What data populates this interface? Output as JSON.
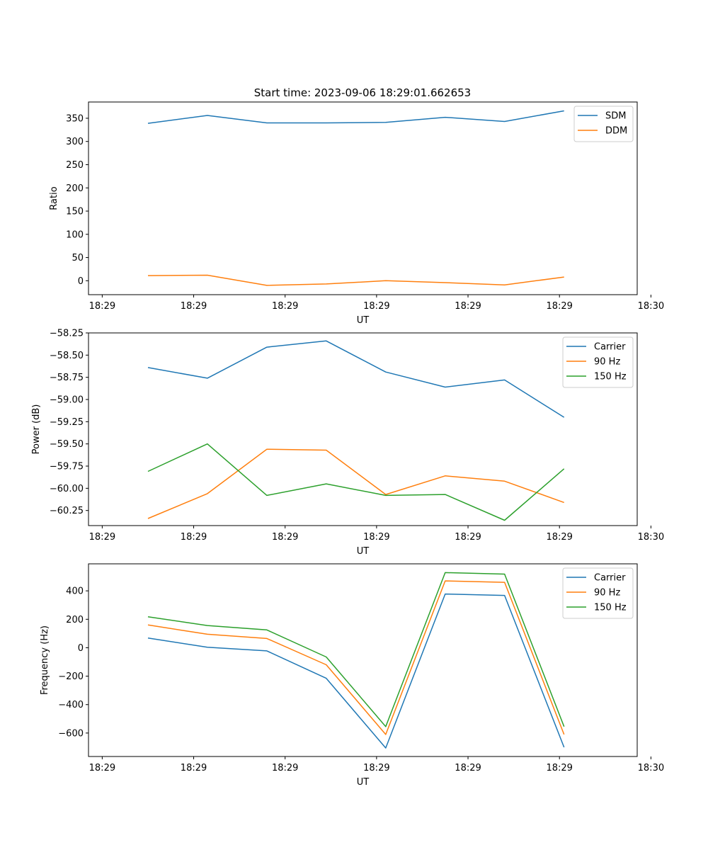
{
  "title": "Start time: 2023-09-06 18:29:01.662653",
  "colors": {
    "blue": "#1f77b4",
    "orange": "#ff7f0e",
    "green": "#2ca02c"
  },
  "chart_data": [
    {
      "type": "line",
      "title": "Start time: 2023-09-06 18:29:01.662653",
      "xlabel": "UT",
      "ylabel": "Ratio",
      "xlim": [
        -0.15,
        5.85
      ],
      "ylim": [
        -30,
        385
      ],
      "xticks": [
        0,
        1,
        2,
        3,
        4,
        5,
        6
      ],
      "xtick_labels": [
        "18:29",
        "18:29",
        "18:29",
        "18:29",
        "18:29",
        "18:29",
        "18:30"
      ],
      "yticks": [
        0,
        50,
        100,
        150,
        200,
        250,
        300,
        350
      ],
      "ytick_labels": [
        "0",
        "50",
        "100",
        "150",
        "200",
        "250",
        "300",
        "350"
      ],
      "x": [
        0.5,
        1.15,
        1.8,
        2.45,
        3.1,
        3.75,
        4.4,
        5.05
      ],
      "legend_position": "top-right",
      "series": [
        {
          "name": "SDM",
          "color": "#1f77b4",
          "values": [
            339,
            356,
            340,
            340,
            341,
            352,
            343,
            366
          ]
        },
        {
          "name": "DDM",
          "color": "#ff7f0e",
          "values": [
            11,
            12,
            -10,
            -7,
            0,
            -4,
            -9,
            8
          ]
        }
      ]
    },
    {
      "type": "line",
      "title": "",
      "xlabel": "UT",
      "ylabel": "Power (dB)",
      "xlim": [
        -0.15,
        5.85
      ],
      "ylim": [
        -60.42,
        -58.25
      ],
      "xticks": [
        0,
        1,
        2,
        3,
        4,
        5,
        6
      ],
      "xtick_labels": [
        "18:29",
        "18:29",
        "18:29",
        "18:29",
        "18:29",
        "18:29",
        "18:30"
      ],
      "yticks": [
        -60.25,
        -60.0,
        -59.75,
        -59.5,
        -59.25,
        -59.0,
        -58.75,
        -58.5,
        -58.25
      ],
      "ytick_labels": [
        "−60.25",
        "−60.00",
        "−59.75",
        "−59.50",
        "−59.25",
        "−59.00",
        "−58.75",
        "−58.50",
        "−58.25"
      ],
      "x": [
        0.5,
        1.15,
        1.8,
        2.45,
        3.1,
        3.75,
        4.4,
        5.05
      ],
      "legend_position": "top-right",
      "series": [
        {
          "name": "Carrier",
          "color": "#1f77b4",
          "values": [
            -58.64,
            -58.76,
            -58.41,
            -58.34,
            -58.69,
            -58.86,
            -58.78,
            -59.2
          ]
        },
        {
          "name": "90 Hz",
          "color": "#ff7f0e",
          "values": [
            -60.34,
            -60.06,
            -59.56,
            -59.57,
            -60.07,
            -59.86,
            -59.92,
            -60.16
          ]
        },
        {
          "name": "150 Hz",
          "color": "#2ca02c",
          "values": [
            -59.81,
            -59.5,
            -60.08,
            -59.95,
            -60.08,
            -60.07,
            -60.36,
            -59.78
          ]
        }
      ]
    },
    {
      "type": "line",
      "title": "",
      "xlabel": "UT",
      "ylabel": "Frequency (Hz)",
      "xlim": [
        -0.15,
        5.85
      ],
      "ylim": [
        -765,
        590
      ],
      "xticks": [
        0,
        1,
        2,
        3,
        4,
        5,
        6
      ],
      "xtick_labels": [
        "18:29",
        "18:29",
        "18:29",
        "18:29",
        "18:29",
        "18:29",
        "18:30"
      ],
      "yticks": [
        -600,
        -400,
        -200,
        0,
        200,
        400
      ],
      "ytick_labels": [
        "−600",
        "−400",
        "−200",
        "0",
        "200",
        "400"
      ],
      "x": [
        0.5,
        1.15,
        1.8,
        2.45,
        3.1,
        3.75,
        4.4,
        5.05
      ],
      "legend_position": "top-right",
      "series": [
        {
          "name": "Carrier",
          "color": "#1f77b4",
          "values": [
            68,
            3,
            -22,
            -215,
            -705,
            378,
            368,
            -700
          ]
        },
        {
          "name": "90 Hz",
          "color": "#ff7f0e",
          "values": [
            160,
            95,
            65,
            -120,
            -610,
            470,
            460,
            -610
          ]
        },
        {
          "name": "150 Hz",
          "color": "#2ca02c",
          "values": [
            218,
            156,
            125,
            -65,
            -555,
            528,
            518,
            -555
          ]
        }
      ]
    }
  ]
}
